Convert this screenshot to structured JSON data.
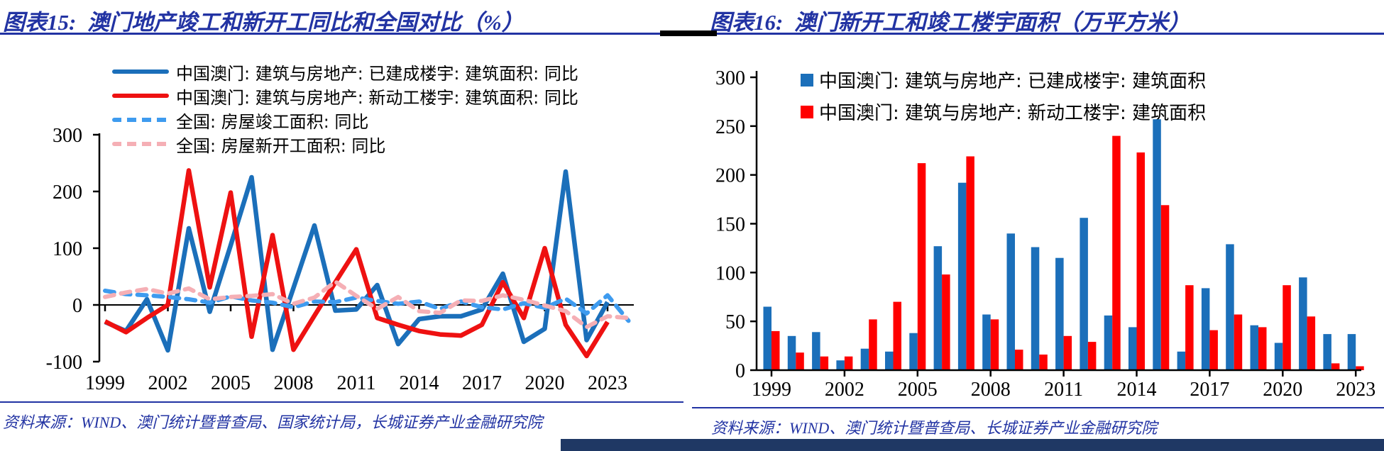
{
  "left_panel": {
    "title": "图表15:  澳门地产竣工和新开工同比和全国对比（%）",
    "source": "资料来源：WIND、澳门统计暨普查局、国家统计局，长城证券产业金融研究院"
  },
  "right_panel": {
    "title": "图表16:  澳门新开工和竣工楼宇面积（万平方米）",
    "source": "资料来源：WIND、澳门统计暨普查局、长城证券产业金融研究院"
  },
  "colors": {
    "title_blue": "#2233A3",
    "macau_completed_blue": "#1B6FBA",
    "macau_newstart_red": "#EE1111",
    "national_completed_blue_dashed": "#3E9BEF",
    "national_newstart_pink_dashed": "#F5AFB5",
    "bar_blue": "#1B6FBA",
    "bar_red": "#FF0000",
    "navy_band": "#1F3864"
  },
  "chart_data": [
    {
      "type": "line",
      "title": "澳门地产竣工和新开工同比和全国对比（%）",
      "x": [
        1999,
        2000,
        2001,
        2002,
        2003,
        2004,
        2005,
        2006,
        2007,
        2008,
        2009,
        2010,
        2011,
        2012,
        2013,
        2014,
        2015,
        2016,
        2017,
        2018,
        2019,
        2020,
        2021,
        2022,
        2023,
        2024
      ],
      "x_tick_labels": [
        "1999",
        "2002",
        "2005",
        "2008",
        "2011",
        "2014",
        "2017",
        "2020",
        "2023"
      ],
      "y_ticks": [
        300,
        200,
        100,
        0,
        -100
      ],
      "ylim": [
        -100,
        300
      ],
      "grid": false,
      "legend_position": "top-left",
      "series": [
        {
          "name": "中国澳门: 建筑与房地产: 已建成楼宇: 建筑面积: 同比",
          "style": "solid",
          "color": "#1B6FBA",
          "values": [
            -30,
            -46,
            10,
            -80,
            135,
            -12,
            105,
            225,
            -79,
            30,
            140,
            -10,
            -8,
            35,
            -69,
            -25,
            -20,
            -20,
            -8,
            55,
            -65,
            -42,
            235,
            -62,
            5
          ]
        },
        {
          "name": "中国澳门: 建筑与房地产: 新动工楼宇: 建筑面积: 同比",
          "style": "solid",
          "color": "#EE1111",
          "values": [
            -29,
            -48,
            -23,
            0,
            237,
            31,
            198,
            -56,
            123,
            -79,
            -19,
            40,
            98,
            -23,
            -35,
            -46,
            -52,
            -54,
            -35,
            40,
            -23,
            100,
            -35,
            -90,
            -30
          ]
        },
        {
          "name": "全国: 房屋竣工面积: 同比",
          "style": "dashed",
          "color": "#3E9BEF",
          "values": [
            25,
            19,
            17,
            14,
            10,
            4,
            15,
            8,
            4,
            -4,
            6,
            5,
            13,
            7,
            2,
            6,
            -7,
            6,
            -4,
            -8,
            3,
            -5,
            11,
            -15,
            17,
            -28
          ]
        },
        {
          "name": "全国: 房屋新开工面积: 同比",
          "style": "dashed",
          "color": "#F5AFB5",
          "values": [
            14,
            22,
            28,
            20,
            29,
            10,
            14,
            16,
            19,
            2,
            13,
            41,
            16,
            -7,
            14,
            -11,
            -14,
            8,
            7,
            17,
            9,
            -1,
            -11,
            -39,
            -20,
            -23
          ]
        }
      ]
    },
    {
      "type": "bar",
      "title": "澳门新开工和竣工楼宇面积（万平方米）",
      "categories": [
        1999,
        2000,
        2001,
        2002,
        2003,
        2004,
        2005,
        2006,
        2007,
        2008,
        2009,
        2010,
        2011,
        2012,
        2013,
        2014,
        2015,
        2016,
        2017,
        2018,
        2019,
        2020,
        2021,
        2022,
        2023
      ],
      "x_tick_labels": [
        "1999",
        "2002",
        "2005",
        "2008",
        "2011",
        "2014",
        "2017",
        "2020",
        "2023"
      ],
      "y_ticks": [
        300,
        250,
        200,
        150,
        100,
        50,
        0
      ],
      "ylim": [
        0,
        300
      ],
      "grid": false,
      "legend_position": "top",
      "series": [
        {
          "name": "中国澳门: 建筑与房地产: 已建成楼宇: 建筑面积",
          "color": "#1B6FBA",
          "values": [
            65,
            35,
            39,
            10,
            22,
            19,
            38,
            127,
            192,
            57,
            140,
            126,
            115,
            156,
            56,
            44,
            257,
            19,
            84,
            129,
            46,
            28,
            95,
            37,
            37
          ]
        },
        {
          "name": "中国澳门: 建筑与房地产: 新动工楼宇: 建筑面积",
          "color": "#FF0000",
          "values": [
            40,
            18,
            14,
            14,
            52,
            70,
            212,
            98,
            219,
            52,
            21,
            16,
            35,
            29,
            240,
            223,
            169,
            87,
            41,
            57,
            44,
            87,
            55,
            7,
            4
          ]
        }
      ]
    }
  ]
}
